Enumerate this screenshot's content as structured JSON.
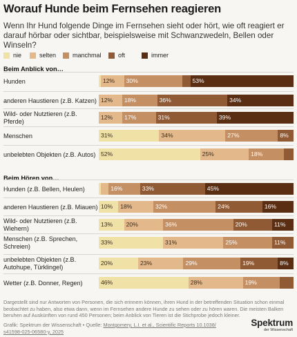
{
  "title": "Worauf Hunde beim Fernsehen reagieren",
  "subtitle": "Wenn Ihr Hund folgende Dinge im Fernsehen sieht oder hört, wie oft reagiert er darauf hörbar oder sichtbar, beispielsweise mit Schwanzwedeln, Bellen oder Winseln?",
  "colors": {
    "nie": "#f0e2a6",
    "selten": "#e3b98b",
    "manchmal": "#c48f62",
    "oft": "#8f5a34",
    "immer": "#5a2e12"
  },
  "chart_data": {
    "type": "bar",
    "stacked": true,
    "orientation": "horizontal",
    "title": "Worauf Hunde beim Fernsehen reagieren",
    "categories_legend": [
      "nie",
      "selten",
      "manchmal",
      "oft",
      "immer"
    ],
    "xlim": [
      0,
      100
    ],
    "unit": "%",
    "groups": [
      {
        "title": "Beim Anblick von…",
        "rows": [
          {
            "label": "Hunden",
            "values": [
              1,
              12,
              30,
              4,
              53
            ],
            "labels": [
              "",
              "12%",
              "30%",
              "",
              "53%"
            ]
          },
          {
            "label": "anderen Haustieren (z.B. Katzen)",
            "values": [
              0,
              12,
              18,
              36,
              34
            ],
            "labels": [
              "",
              "12%",
              "18%",
              "36%",
              "34%"
            ]
          },
          {
            "label": "Wild- oder Nutztieren (z.B. Pferde)",
            "values": [
              0,
              12,
              17,
              31,
              39
            ],
            "labels": [
              "",
              "12%",
              "17%",
              "31%",
              "39%"
            ]
          },
          {
            "label": "Menschen",
            "values": [
              31,
              34,
              27,
              8,
              0
            ],
            "labels": [
              "31%",
              "34%",
              "27%",
              "8%",
              ""
            ]
          },
          {
            "label": "unbelebten Objekten (z.B. Autos)",
            "values": [
              52,
              25,
              18,
              5,
              0
            ],
            "labels": [
              "52%",
              "25%",
              "18%",
              "",
              ""
            ]
          }
        ]
      },
      {
        "title": "Beim Hören von…",
        "rows": [
          {
            "label": "Hunden (z.B. Bellen, Heulen)",
            "values": [
              1,
              4,
              16,
              33,
              45
            ],
            "labels": [
              "",
              "",
              "16%",
              "33%",
              "45%"
            ]
          },
          {
            "label": "anderen Haustieren (z.B. Miauen)",
            "values": [
              10,
              18,
              32,
              24,
              16
            ],
            "labels": [
              "10%",
              "18%",
              "32%",
              "24%",
              "16%"
            ]
          },
          {
            "label": "Wild- oder Nutztieren (z.B. Wiehern)",
            "values": [
              13,
              20,
              36,
              20,
              11
            ],
            "labels": [
              "13%",
              "20%",
              "36%",
              "20%",
              "11%"
            ]
          },
          {
            "label": "Menschen (z.B. Sprechen, Schreien)",
            "values": [
              33,
              31,
              25,
              11,
              0
            ],
            "labels": [
              "33%",
              "31%",
              "25%",
              "11%",
              ""
            ]
          },
          {
            "label": "unbelebten Objekten (z.B. Autohupe, Türklingel)",
            "values": [
              20,
              23,
              29,
              19,
              8
            ],
            "labels": [
              "20%",
              "23%",
              "29%",
              "19%",
              "8%"
            ]
          },
          {
            "label": "Wetter (z.B. Donner, Regen)",
            "values": [
              46,
              28,
              19,
              7,
              0
            ],
            "labels": [
              "46%",
              "28%",
              "19%",
              "",
              ""
            ]
          }
        ]
      }
    ]
  },
  "footer": "Dargestellt sind nur Antworten von Personen, die sich erinnern können, ihren Hund in der betreffenden Situation schon einmal beobachtet zu haben, also etwa dann, wenn im Fernsehen andere Hunde zu sehen oder zu hören waren. Die meisten Balken beruhen auf Auskünften von rund 450 Personen; beim Anblick von Tieren ist die Stichprobe jedoch kleiner.",
  "source_prefix": "Grafik: Spektrum der Wissenschaft • Quelle: ",
  "source_link": "Montgomery, L.I. et al., Scientific Reports 10.1038/ s41598-025-06580-y, 2025",
  "logo": {
    "name": "Spektrum",
    "sub": "der Wissenschaft"
  }
}
